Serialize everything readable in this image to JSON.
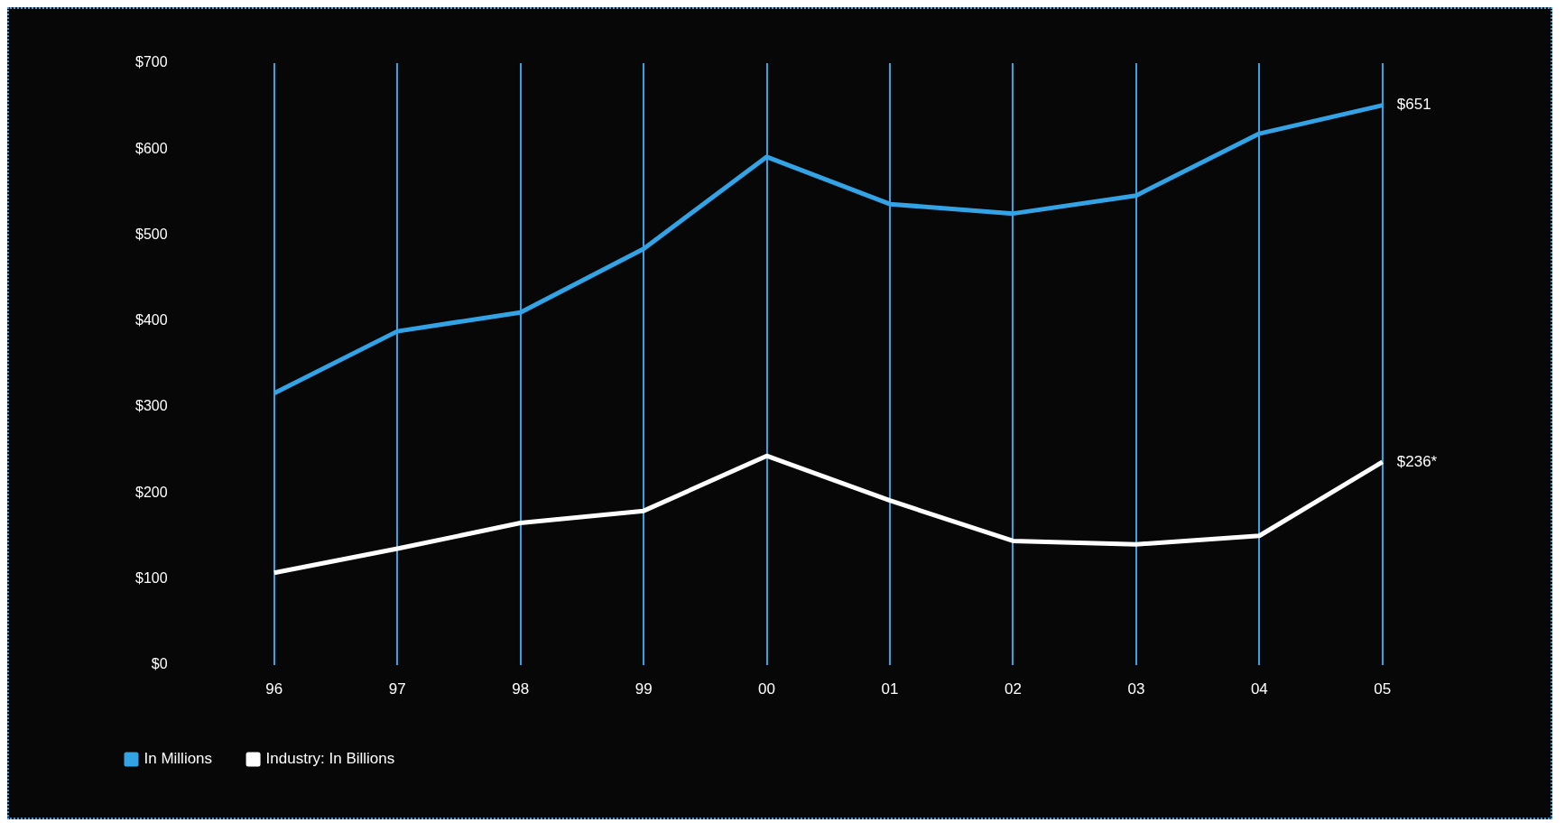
{
  "chart_data": {
    "type": "line",
    "categories": [
      "96",
      "97",
      "98",
      "99",
      "00",
      "01",
      "02",
      "03",
      "04",
      "05"
    ],
    "series": [
      {
        "name": "In Millions",
        "color": "#33a3e6",
        "values": [
          316,
          388,
          410,
          484,
          591,
          536,
          525,
          546,
          618,
          651
        ],
        "value_labels": [
          null,
          null,
          null,
          null,
          null,
          null,
          null,
          null,
          null,
          "$651"
        ]
      },
      {
        "name": "Industry: In Billions",
        "color": "#ffffff",
        "values": [
          107,
          135,
          165,
          179,
          243,
          191,
          144,
          140,
          150,
          236
        ],
        "value_labels": [
          null,
          null,
          null,
          null,
          null,
          null,
          null,
          null,
          null,
          "$236*"
        ]
      }
    ],
    "ylim": [
      0,
      700
    ],
    "yticks": [
      {
        "value": 0,
        "label": "$0"
      },
      {
        "value": 100,
        "label": "$100"
      },
      {
        "value": 200,
        "label": "$200"
      },
      {
        "value": 300,
        "label": "$300"
      },
      {
        "value": 400,
        "label": "$400"
      },
      {
        "value": 500,
        "label": "$500"
      },
      {
        "value": 600,
        "label": "$600"
      },
      {
        "value": 700,
        "label": "$700"
      }
    ],
    "grid": "x",
    "legend": "bottom",
    "line_style": "solid"
  }
}
